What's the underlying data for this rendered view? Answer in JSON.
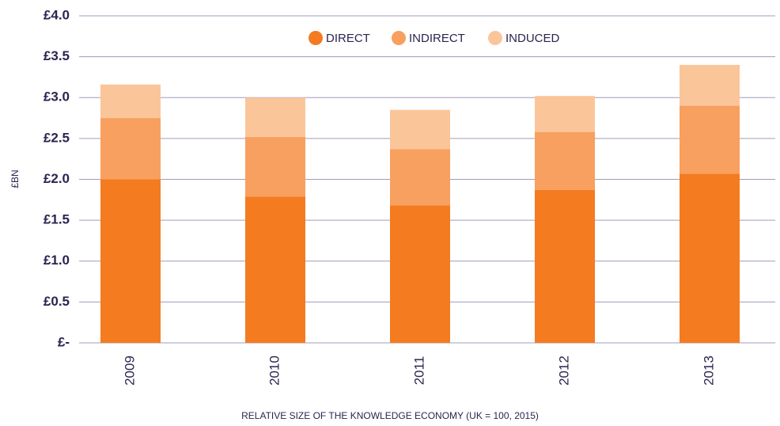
{
  "chart_data": {
    "type": "stacked_bar",
    "y_label": "£BN",
    "x_label": "RELATIVE SIZE OF THE KNOWLEDGE ECONOMY (UK = 100, 2015)",
    "categories": [
      "2009",
      "2010",
      "2011",
      "2012",
      "2013"
    ],
    "series": [
      {
        "name": "DIRECT",
        "color": "#f47b20",
        "values": [
          2.0,
          1.79,
          1.68,
          1.87,
          2.07
        ]
      },
      {
        "name": "INDIRECT",
        "color": "#f7a05f",
        "values": [
          0.75,
          0.73,
          0.69,
          0.71,
          0.83
        ]
      },
      {
        "name": "INDUCED",
        "color": "#fbc59a",
        "values": [
          0.41,
          0.48,
          0.48,
          0.44,
          0.5
        ]
      }
    ],
    "ylim": [
      0,
      4
    ],
    "yticks": [
      {
        "value": 0,
        "label": "£-"
      },
      {
        "value": 0.5,
        "label": "£0.5"
      },
      {
        "value": 1,
        "label": "£1.0"
      },
      {
        "value": 1.5,
        "label": "£1.5"
      },
      {
        "value": 2,
        "label": "£2.0"
      },
      {
        "value": 2.5,
        "label": "£2.5"
      },
      {
        "value": 3,
        "label": "£3.0"
      },
      {
        "value": 3.5,
        "label": "£3.5"
      },
      {
        "value": 4,
        "label": "£4.0"
      }
    ],
    "grid": true
  }
}
